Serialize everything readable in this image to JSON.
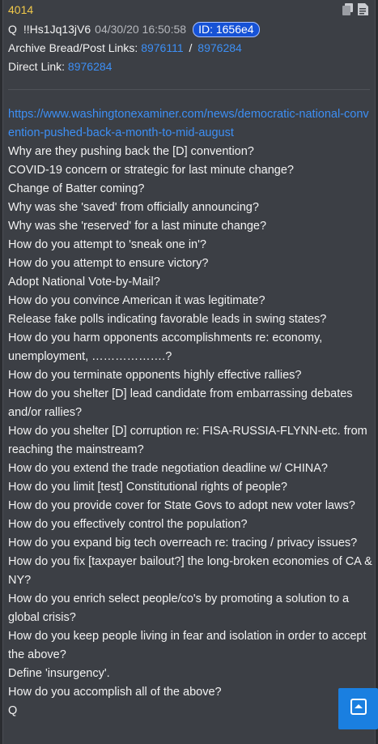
{
  "post": {
    "number": "4014",
    "name": "Q",
    "tripcode": "!!Hs1Jq13jV6",
    "datetime": "04/30/20 16:50:58",
    "id_badge": "ID: 1656e4",
    "archive_label": "Archive Bread/Post Links:",
    "archive_link_1": "8976111",
    "archive_sep": "/",
    "archive_link_2": "8976284",
    "direct_label": "Direct Link:",
    "direct_link": "8976284",
    "url": "https://www.washingtonexaminer.com/news/democratic-national-convention-pushed-back-a-month-to-mid-august",
    "lines": [
      "Why are they pushing back the [D] convention?",
      "COVID-19 concern or strategic for last minute change?",
      "Change of Batter coming?",
      "Why was she 'saved' from officially announcing?",
      "Why was she 'reserved' for a last minute change?",
      "How do you attempt to 'sneak one in'?",
      "How do you attempt to ensure victory?",
      "Adopt National Vote-by-Mail?",
      "How do you convince American it was legitimate?",
      "Release fake polls indicating favorable leads in swing states?",
      "How do you harm opponents accomplishments re: economy, unemployment, ……………….?",
      "How do you terminate opponents highly effective rallies?",
      "How do you shelter [D] lead candidate from embarrassing debates and/or rallies?",
      "How do you shelter [D] corruption re: FISA-RUSSIA-FLYNN-etc. from reaching the mainstream?",
      "How do you extend the trade negotiation deadline w/ CHINA?",
      "How do you limit [test] Constitutional rights of people?",
      "How do you provide cover for State Govs to adopt new voter laws?",
      "How do you effectively control the population?",
      "How do you expand big tech overreach re: tracing / privacy issues?",
      "How do you fix [taxpayer bailout?] the long-broken economies of CA & NY?",
      "How do you enrich select people/co's by promoting a solution to a global crisis?",
      "How do you keep people living in fear and isolation in order to accept the above?",
      "Define 'insurgency'.",
      "How do you accomplish all of the above?",
      "Q"
    ]
  },
  "icons": {
    "copy": "copy-icon",
    "document": "document-icon",
    "scroll_top": "scroll-to-top-icon"
  },
  "colors": {
    "background": "#3c3f45",
    "post_number": "#f0c84a",
    "link": "#3d8ff5",
    "id_badge": "#1652d6",
    "scroll_button": "#1a7fe0"
  }
}
